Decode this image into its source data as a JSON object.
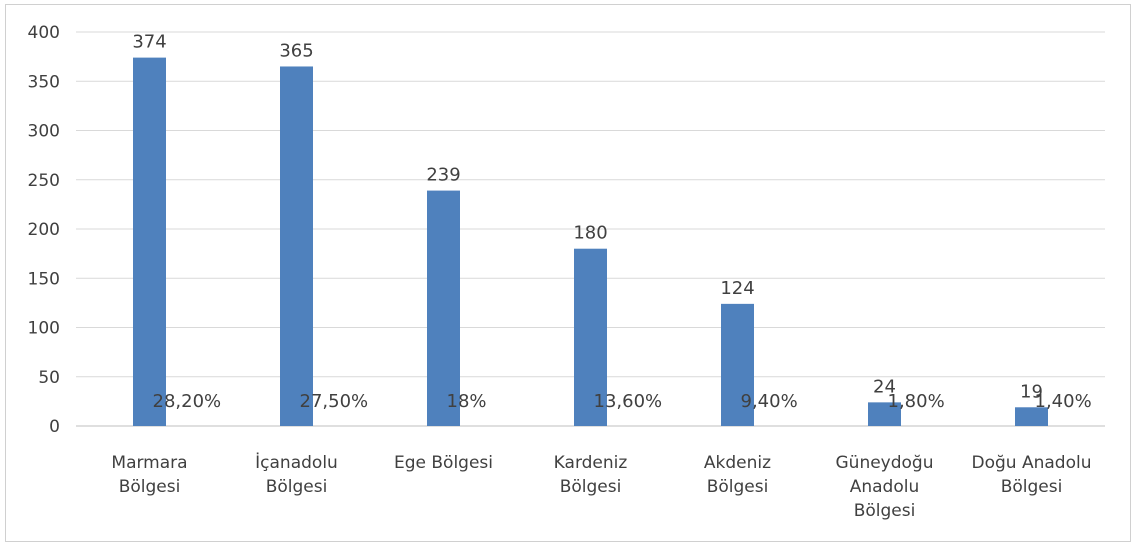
{
  "chart_data": {
    "type": "bar",
    "categories": [
      [
        "Marmara",
        "Bölgesi"
      ],
      [
        "İçanadolu",
        "Bölgesi"
      ],
      [
        "Ege Bölgesi"
      ],
      [
        "Kardeniz",
        "Bölgesi"
      ],
      [
        "Akdeniz",
        "Bölgesi"
      ],
      [
        "Güneydoğu",
        "Anadolu",
        "Bölgesi"
      ],
      [
        "Doğu Anadolu",
        "Bölgesi"
      ]
    ],
    "values": [
      374,
      365,
      239,
      180,
      124,
      24,
      19
    ],
    "value_labels": [
      "374",
      "365",
      "239",
      "180",
      "124",
      "24",
      "19"
    ],
    "percent_labels": [
      "28,20%",
      "27,50%",
      "18%",
      "13,60%",
      "9,40%",
      "1,80%",
      "1,40%"
    ],
    "ylim": [
      0,
      400
    ],
    "yticks": [
      0,
      50,
      100,
      150,
      200,
      250,
      300,
      350,
      400
    ],
    "grid": true,
    "title": "",
    "xlabel": "",
    "ylabel": "",
    "colors": {
      "bar": "#4f81bd",
      "grid": "#d9d9d9",
      "text": "#404040"
    }
  }
}
